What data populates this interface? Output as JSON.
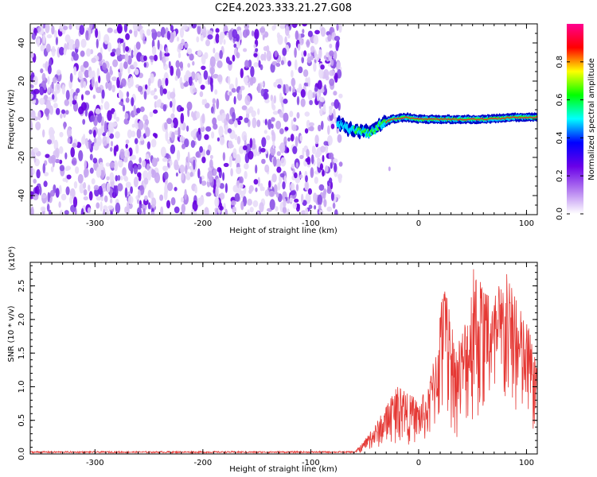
{
  "title": "C2E4.2023.333.21.27.G08",
  "chart_data": [
    {
      "type": "heatmap",
      "xlabel": "Height of straight line (km)",
      "ylabel": "Frequency (Hz)",
      "xlim": [
        -360,
        110
      ],
      "ylim": [
        -50,
        50
      ],
      "x_ticks": [
        -300,
        -200,
        -100,
        0,
        100
      ],
      "y_ticks": [
        -40,
        -20,
        0,
        20,
        40
      ],
      "noise_region_x": [
        -360,
        -72
      ],
      "signal_start_x": -75,
      "signal_frequency": [
        {
          "x": -75,
          "y": -2
        },
        {
          "x": -65,
          "y": -5
        },
        {
          "x": -55,
          "y": -6
        },
        {
          "x": -45,
          "y": -7
        },
        {
          "x": -35,
          "y": -3
        },
        {
          "x": -25,
          "y": 0
        },
        {
          "x": -10,
          "y": 1
        },
        {
          "x": 0,
          "y": 0
        },
        {
          "x": 20,
          "y": 0
        },
        {
          "x": 60,
          "y": 0
        },
        {
          "x": 90,
          "y": 1
        },
        {
          "x": 110,
          "y": 1
        }
      ],
      "colorbar": {
        "label": "Normalized spectral amplitude",
        "range": [
          0,
          1
        ],
        "ticks": [
          "0.0",
          "0.2",
          "0.4",
          "0.6",
          "0.8"
        ],
        "colors": [
          "#ffffff",
          "#b37cf0",
          "#6a00e8",
          "#0000ff",
          "#00ffff",
          "#00ff00",
          "#ffff00",
          "#ff0000",
          "#ff0090"
        ]
      }
    },
    {
      "type": "line",
      "xlabel": "Height of straight line (km)",
      "ylabel": "SNR (10 * v/v)",
      "scale_label": "(x10⁴)",
      "xlim": [
        -360,
        110
      ],
      "ylim": [
        0,
        2.85
      ],
      "x_ticks": [
        -300,
        -200,
        -100,
        0,
        100
      ],
      "y_ticks": [
        "0.0",
        "0.5",
        "1.0",
        "1.5",
        "2.0",
        "2.5"
      ],
      "color": "#e53935",
      "envelope": [
        {
          "x": -360,
          "y": 0.02
        },
        {
          "x": -60,
          "y": 0.02
        },
        {
          "x": -50,
          "y": 0.2
        },
        {
          "x": -40,
          "y": 0.45
        },
        {
          "x": -30,
          "y": 0.7
        },
        {
          "x": -20,
          "y": 1.0
        },
        {
          "x": -10,
          "y": 0.9
        },
        {
          "x": 0,
          "y": 0.8
        },
        {
          "x": 10,
          "y": 1.0
        },
        {
          "x": 20,
          "y": 2.2
        },
        {
          "x": 25,
          "y": 2.45
        },
        {
          "x": 35,
          "y": 1.5
        },
        {
          "x": 45,
          "y": 2.2
        },
        {
          "x": 52,
          "y": 2.85
        },
        {
          "x": 60,
          "y": 2.4
        },
        {
          "x": 70,
          "y": 2.3
        },
        {
          "x": 80,
          "y": 2.75
        },
        {
          "x": 90,
          "y": 2.3
        },
        {
          "x": 100,
          "y": 2.0
        },
        {
          "x": 106,
          "y": 1.6
        },
        {
          "x": 110,
          "y": 1.2
        }
      ]
    }
  ]
}
